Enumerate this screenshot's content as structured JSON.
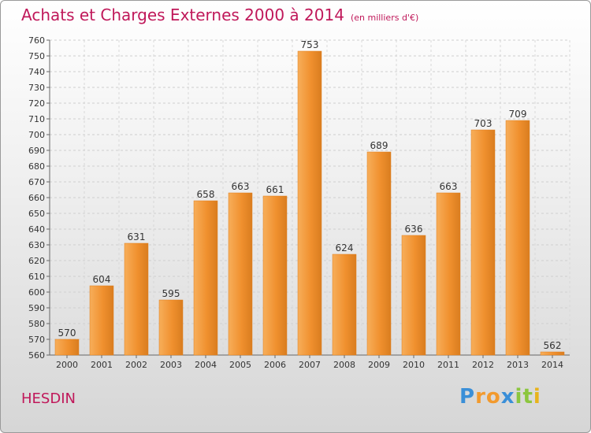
{
  "title": "Achats et Charges Externes 2000 à 2014",
  "subtitle": "(en milliers d'€)",
  "commune": "HESDIN",
  "logo": {
    "letters": [
      "P",
      "r",
      "o",
      "x",
      "i",
      "t",
      "i"
    ],
    "colors": [
      "#3a8fd8",
      "#f29a2e",
      "#f29a2e",
      "#3a8fd8",
      "#8cc63f",
      "#8cc63f",
      "#e8b31c"
    ]
  },
  "colors": {
    "bar": "#f0902e",
    "bar_light": "#f7ae5a",
    "bar_dark": "#d97d1f",
    "title": "#c0185a"
  },
  "chart_data": {
    "type": "bar",
    "categories": [
      "2000",
      "2001",
      "2002",
      "2003",
      "2004",
      "2005",
      "2006",
      "2007",
      "2008",
      "2009",
      "2010",
      "2011",
      "2012",
      "2013",
      "2014"
    ],
    "values": [
      570,
      604,
      631,
      595,
      658,
      663,
      661,
      753,
      624,
      689,
      636,
      663,
      703,
      709,
      562
    ],
    "ylim": [
      560,
      760
    ],
    "ytick_step": 10,
    "grid": true
  }
}
